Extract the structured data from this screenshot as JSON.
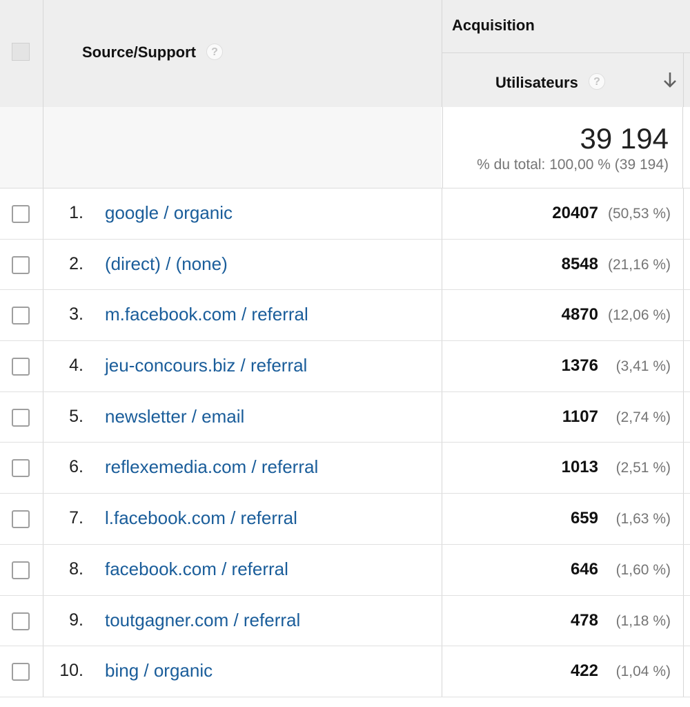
{
  "header": {
    "source_label": "Source/Support",
    "acquisition_label": "Acquisition",
    "users_label": "Utilisateurs",
    "help_glyph": "?",
    "sort_icon": "arrow-down-icon"
  },
  "total": {
    "value": "39 194",
    "subtitle": "% du total: 100,00 % (39 194)"
  },
  "rows": [
    {
      "index": "1.",
      "source": "google / organic",
      "users": "20407",
      "percent": "(50,53 %)"
    },
    {
      "index": "2.",
      "source": "(direct) / (none)",
      "users": "8548",
      "percent": "(21,16 %)"
    },
    {
      "index": "3.",
      "source": "m.facebook.com / referral",
      "users": "4870",
      "percent": "(12,06 %)"
    },
    {
      "index": "4.",
      "source": "jeu-concours.biz / referral",
      "users": "1376",
      "percent": "(3,41 %)"
    },
    {
      "index": "5.",
      "source": "newsletter / email",
      "users": "1107",
      "percent": "(2,74 %)"
    },
    {
      "index": "6.",
      "source": "reflexemedia.com / referral",
      "users": "1013",
      "percent": "(2,51 %)"
    },
    {
      "index": "7.",
      "source": "l.facebook.com / referral",
      "users": "659",
      "percent": "(1,63 %)"
    },
    {
      "index": "8.",
      "source": "facebook.com / referral",
      "users": "646",
      "percent": "(1,60 %)"
    },
    {
      "index": "9.",
      "source": "toutgagner.com / referral",
      "users": "478",
      "percent": "(1,18 %)"
    },
    {
      "index": "10.",
      "source": "bing / organic",
      "users": "422",
      "percent": "(1,04 %)"
    }
  ],
  "colors": {
    "link": "#1a5d9a",
    "header_bg": "#eeeeee",
    "muted_text": "#757575"
  }
}
